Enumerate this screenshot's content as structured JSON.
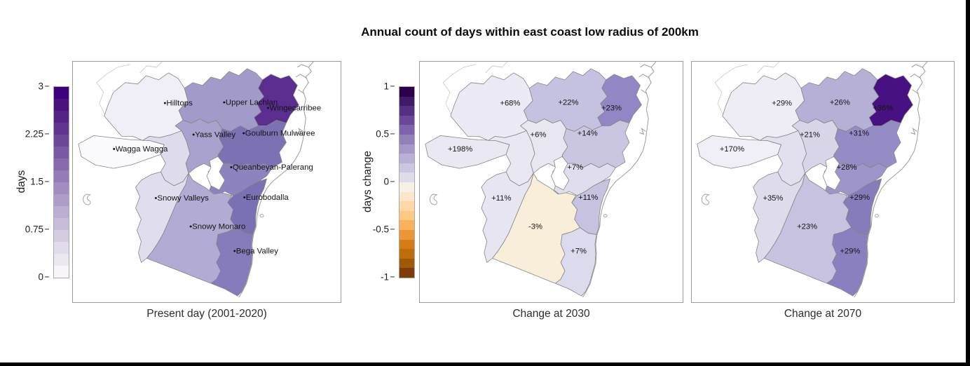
{
  "chart_data": {
    "type": "choropleth",
    "title": "Annual count of days within east coast low radius of 200km",
    "panels": [
      {
        "caption": "Present day (2001-2020)",
        "colorbar_label": "days",
        "colorbar_range": [
          0,
          3
        ],
        "colorbar_ticks": [
          0,
          0.75,
          1.5,
          2.25,
          3
        ]
      },
      {
        "caption": "Change at 2030",
        "colorbar_label": "days change",
        "colorbar_range": [
          -1,
          1
        ],
        "colorbar_ticks": [
          -1,
          -0.5,
          0,
          0.5,
          1
        ]
      },
      {
        "caption": "Change at 2070",
        "colorbar_label": "days change",
        "colorbar_range": [
          -1,
          1
        ],
        "colorbar_ticks": [
          -1,
          -0.5,
          0,
          0.5,
          1
        ]
      }
    ],
    "regions": [
      {
        "id": "wagga_wagga",
        "name": "Wagga Wagga",
        "days_present_est": 0.05,
        "change_2030": "+198%",
        "change_2070": "+170%"
      },
      {
        "id": "hilltops",
        "name": "Hilltops",
        "days_present_est": 0.3,
        "change_2030": "+68%",
        "change_2070": "+29%"
      },
      {
        "id": "unnamed_region",
        "name": "",
        "days_present_est": 0.8,
        "change_2030": "",
        "change_2070": ""
      },
      {
        "id": "yass_valley",
        "name": "Yass Valley",
        "days_present_est": 1.4,
        "change_2030": "+6%",
        "change_2070": "+21%"
      },
      {
        "id": "upper_lachlan",
        "name": "Upper Lachlan",
        "days_present_est": 1.5,
        "change_2030": "+22%",
        "change_2070": "+26%"
      },
      {
        "id": "wingecarribee",
        "name": "Wingecarribee",
        "days_present_est": 2.6,
        "change_2030": "+23%",
        "change_2070": "+36%"
      },
      {
        "id": "goulburn_mulwaree",
        "name": "Goulburn Mulwaree",
        "days_present_est": 2.0,
        "change_2030": "+14%",
        "change_2070": "+31%"
      },
      {
        "id": "queanbeyan_palerang",
        "name": "Queanbeyan-Palerang",
        "days_present_est": 1.9,
        "change_2030": "+7%",
        "change_2070": "+28%"
      },
      {
        "id": "snowy_valleys",
        "name": "Snowy Valleys",
        "days_present_est": 0.65,
        "change_2030": "+11%",
        "change_2070": "+35%"
      },
      {
        "id": "snowy_monaro",
        "name": "Snowy Monaro",
        "days_present_est": 1.2,
        "change_2030": "-3%",
        "change_2070": "+23%"
      },
      {
        "id": "eurobodalla",
        "name": "Eurobodalla",
        "days_present_est": 2.0,
        "change_2030": "+11%",
        "change_2070": "+29%"
      },
      {
        "id": "bega_valley",
        "name": "Bega Valley",
        "days_present_est": 1.9,
        "change_2030": "+7%",
        "change_2070": "+29%"
      }
    ]
  },
  "colorbars": [
    {
      "label": "days",
      "tick_labels": [
        "3",
        "2.25",
        "1.5",
        "0.75",
        "0"
      ],
      "colors": [
        "#3f007d",
        "#49127f",
        "#552387",
        "#613490",
        "#6d4699",
        "#7a58a5",
        "#8869ae",
        "#957bb7",
        "#a28cc0",
        "#af9dc9",
        "#bcadd3",
        "#c9bddc",
        "#d5cce4",
        "#e1dbec",
        "#ece8f2",
        "#f8f6fa"
      ]
    },
    {
      "label": "days change",
      "tick_labels": [
        "1",
        "0.5",
        "0",
        "-0.5",
        "-1"
      ],
      "colors": [
        "#2d004b",
        "#401a66",
        "#553080",
        "#6a4799",
        "#7e62aa",
        "#9280bb",
        "#a699c9",
        "#b9b0d5",
        "#ccc6e0",
        "#dfdcea",
        "#f7f1e4",
        "#fbe7c8",
        "#fdd8a6",
        "#fdc983",
        "#f8b15c",
        "#ea9637",
        "#d57d14",
        "#bc6d0c",
        "#9e5a08",
        "#7f3b08"
      ]
    }
  ],
  "render": {
    "fills": {
      "wagga_wagga": [
        "#fbfafd",
        "#eae9f3",
        "#f0eff7"
      ],
      "hilltops": [
        "#f0eff7",
        "#eceaf4",
        "#eeedf6"
      ],
      "unnamed_region": [
        "#dedbec",
        "#e9e8f2",
        "#e2dfee"
      ],
      "yass_valley": [
        "#a9a2ce",
        "#e7e6f1",
        "#d8d5e9"
      ],
      "upper_lachlan": [
        "#a29bca",
        "#c5c1e0",
        "#b6b0d7"
      ],
      "wingecarribee": [
        "#5b2d8e",
        "#9287c4",
        "#471182"
      ],
      "goulburn_mulwaree": [
        "#7b71b3",
        "#cac6e2",
        "#958cc6"
      ],
      "queanbeyan_palerang": [
        "#8c83bf",
        "#dfddee",
        "#9e96ca"
      ],
      "snowy_valleys": [
        "#e0ddee",
        "#e6e5f1",
        "#dedbec"
      ],
      "snowy_monaro": [
        "#b2abd3",
        "#f8eed9",
        "#c6c2df"
      ],
      "eurobodalla": [
        "#7a70b4",
        "#c6c2df",
        "#867cbc"
      ],
      "bega_valley": [
        "#867cbb",
        "#dcdaed",
        "#8a80bf"
      ]
    },
    "stroke_region": "#858585",
    "stroke_coast": "#9b9b9b",
    "act_fill": "#ffffff"
  }
}
